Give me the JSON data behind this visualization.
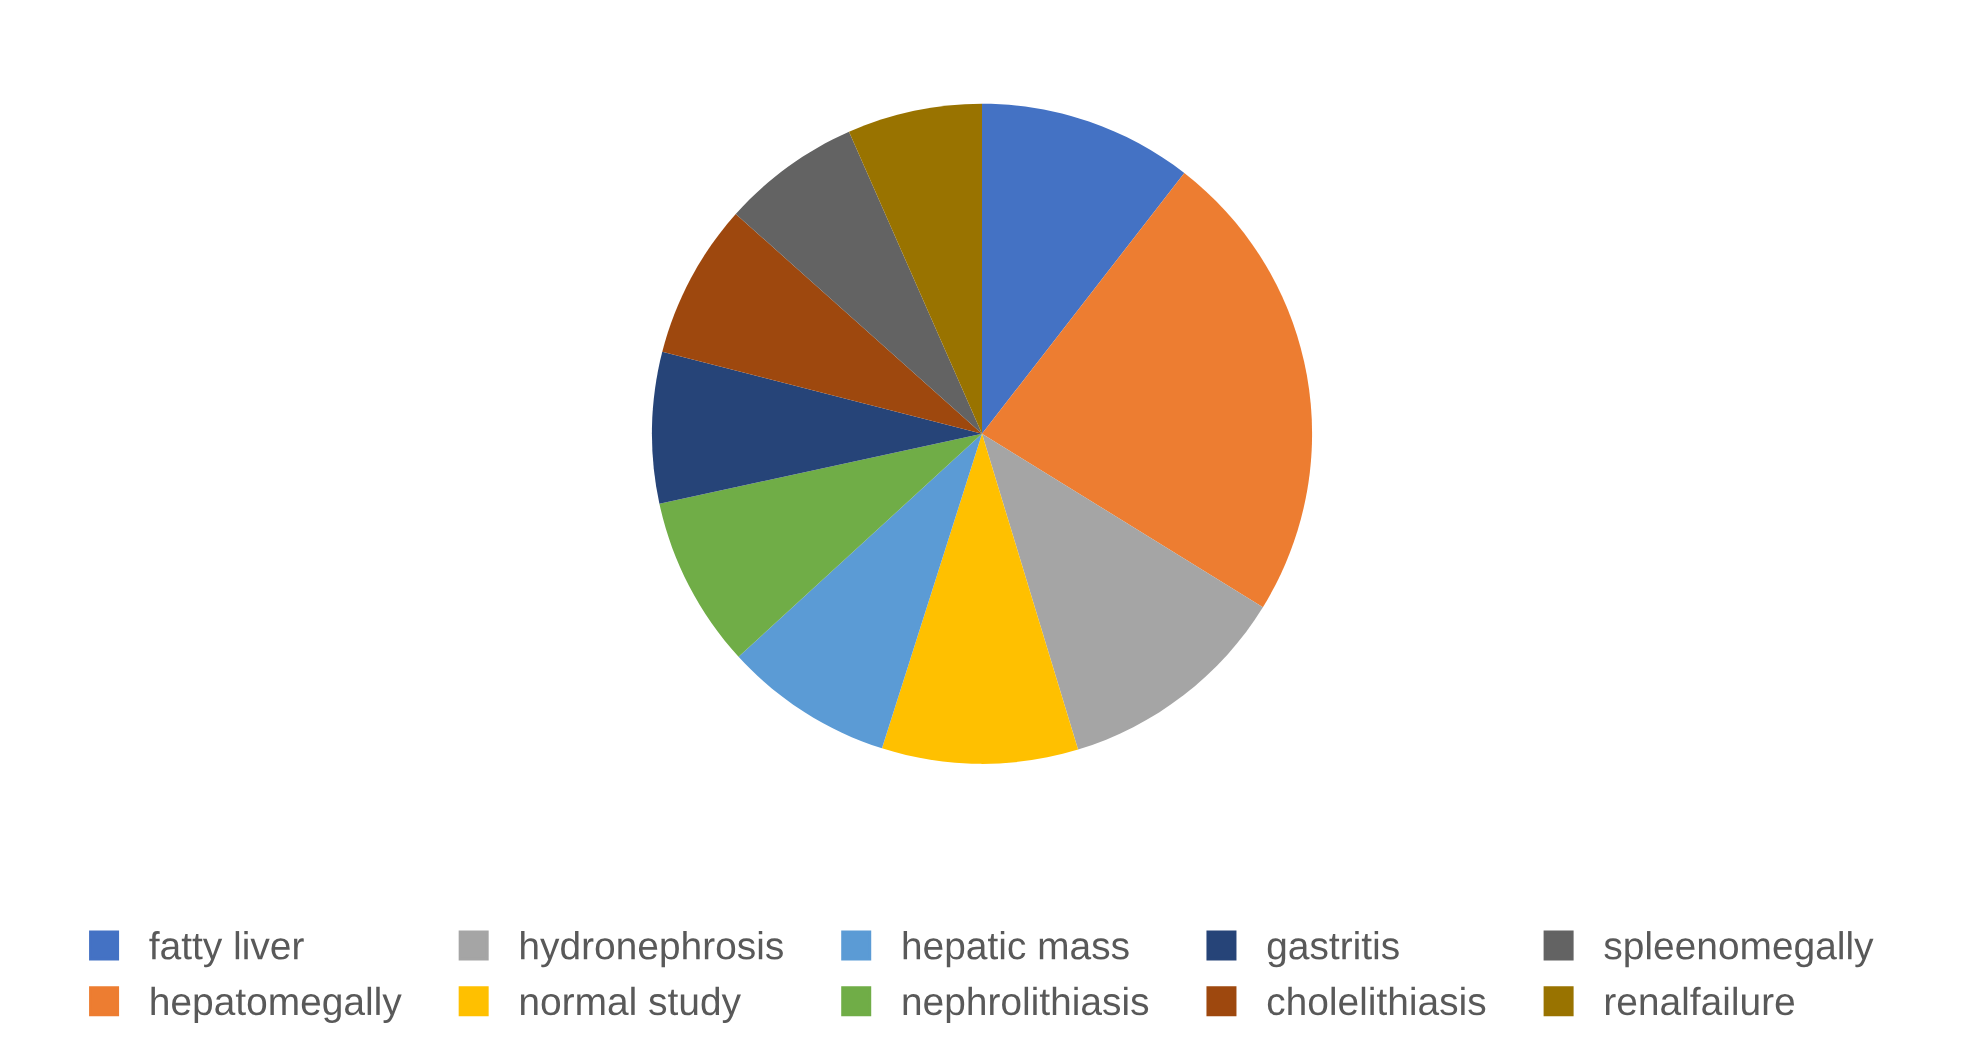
{
  "chart_data": {
    "type": "pie",
    "categories": [
      "fatty liver",
      "hepatomegally",
      "hydronephrosis",
      "normal study",
      "hepatic mass",
      "nephrolithiasis",
      "gastritis",
      "cholelithiasis",
      "spleenomegally",
      "renalfailure"
    ],
    "values": [
      10.5,
      23.3,
      11.5,
      9.6,
      8.3,
      8.4,
      7.4,
      7.6,
      6.8,
      6.6
    ],
    "colors": [
      "#4472c4",
      "#ed7d31",
      "#a5a5a5",
      "#ffc000",
      "#5b9bd5",
      "#70ad47",
      "#264478",
      "#9e480e",
      "#636363",
      "#997300"
    ],
    "legend": "bottom"
  }
}
